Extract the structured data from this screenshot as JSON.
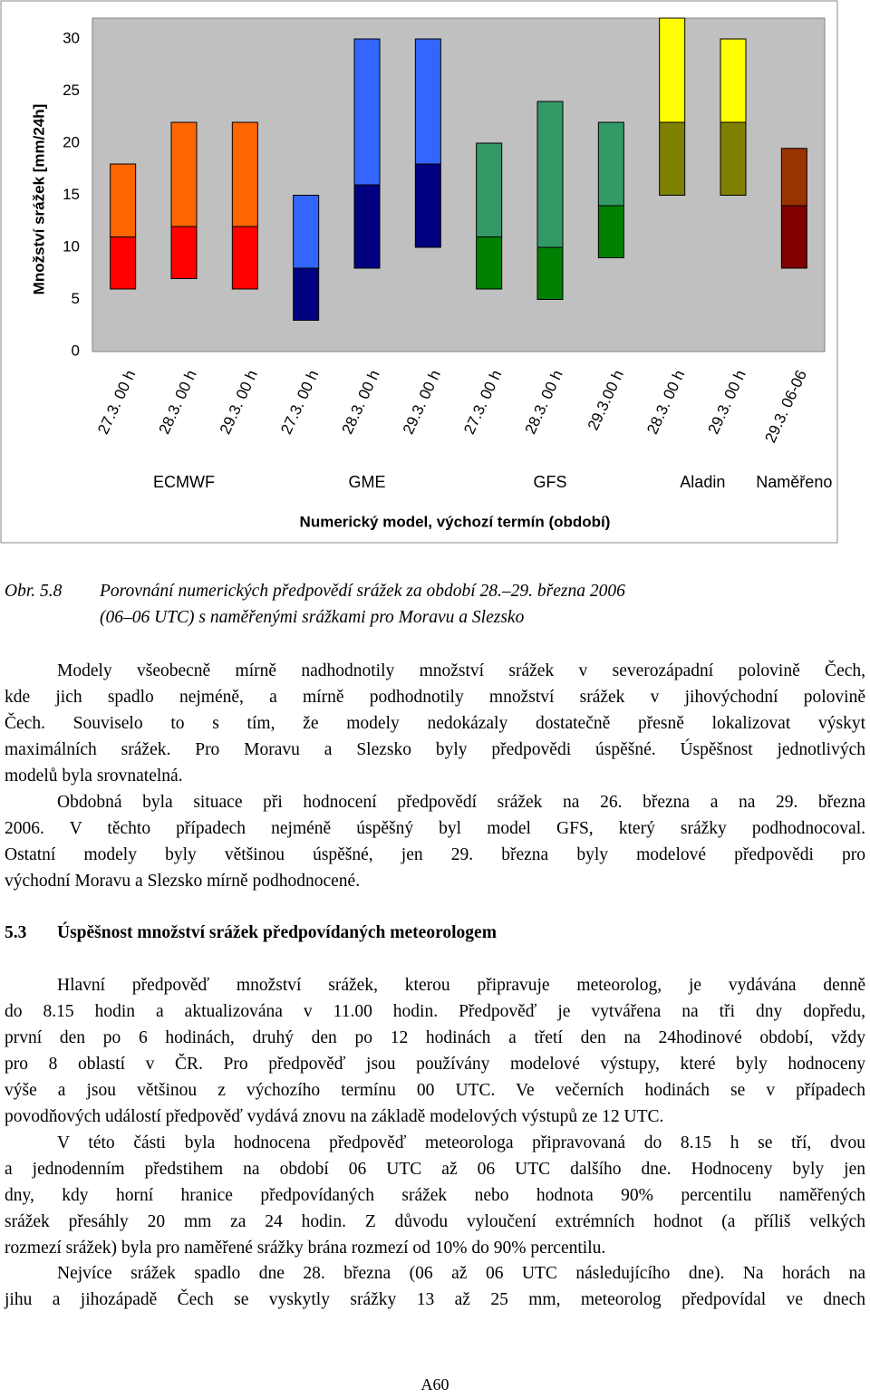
{
  "chart_data": {
    "type": "bar",
    "ylabel": "Množství srážek [mm/24h]",
    "xlabel": "Numerický model, výchozí termín (období)",
    "ylim": [
      0,
      32
    ],
    "yticks": [
      0,
      5,
      10,
      15,
      20,
      25,
      30
    ],
    "grid": false,
    "groups": [
      {
        "name": "ECMWF",
        "categories": [
          "27.3. 00 h",
          "28.3. 00 h",
          "29.3. 00 h"
        ],
        "low": [
          6,
          7,
          6
        ],
        "mid": [
          11,
          12,
          12
        ],
        "high": [
          18,
          22,
          22
        ],
        "colors": {
          "lower": "#ff0000",
          "upper": "#ff6600"
        }
      },
      {
        "name": "GME",
        "categories": [
          "27.3. 00 h",
          "28.3. 00 h",
          "29.3. 00 h"
        ],
        "low": [
          3,
          8,
          10
        ],
        "mid": [
          8,
          16,
          18
        ],
        "high": [
          15,
          30,
          30
        ],
        "colors": {
          "lower": "#000080",
          "upper": "#3366ff"
        }
      },
      {
        "name": "GFS",
        "categories": [
          "27.3. 00 h",
          "28.3. 00 h",
          "29.3.00 h"
        ],
        "low": [
          6,
          5,
          9
        ],
        "mid": [
          11,
          10,
          14
        ],
        "high": [
          20,
          24,
          22
        ],
        "colors": {
          "lower": "#008000",
          "upper": "#339966"
        }
      },
      {
        "name": "Aladin",
        "categories": [
          "28.3. 00 h",
          "29.3. 00 h"
        ],
        "low": [
          15,
          15
        ],
        "mid": [
          22,
          22
        ],
        "high": [
          32,
          30
        ],
        "colors": {
          "lower": "#808000",
          "upper": "#ffff00"
        }
      },
      {
        "name": "Naměřeno",
        "categories": [
          "29.3. 06-06"
        ],
        "low": [
          8
        ],
        "mid": [
          14
        ],
        "high": [
          19.5
        ],
        "colors": {
          "lower": "#800000",
          "upper": "#993300"
        }
      }
    ]
  },
  "caption": {
    "label": "Obr. 5.8",
    "lines": [
      "Porovnání numerických předpovědí srážek za období  28.–29. března 2006",
      "(06–06 UTC) s naměřenými srážkami pro Moravu a Slezsko"
    ]
  },
  "blocks": [
    {
      "lines": [
        "Modely všeobecně mírně nadhodnotily množství srážek v severozápadní polovině Čech,",
        "kde jich spadlo nejméně, a mírně podhodnotily množství srážek v jihovýchodní polovině",
        "Čech. Souviselo to s tím, že modely nedokázaly dostatečně přesně lokalizovat výskyt",
        "maximálních srážek. Pro Moravu a Slezsko byly předpovědi úspěšné. Úspěšnost jednotlivých",
        "modelů byla srovnatelná."
      ]
    },
    {
      "lines": [
        "Obdobná byla situace při hodnocení předpovědí srážek na 26. března a na 29. března",
        "2006. V těchto případech nejméně úspěšný byl model GFS, který srážky podhodnocoval.",
        "Ostatní modely byly většinou úspěšné, jen 29. března byly modelové předpovědi pro",
        "východní Moravu a Slezsko mírně podhodnocené."
      ]
    },
    {
      "lines": [
        "Hlavní předpověď množství srážek, kterou připravuje meteorolog, je vydávána denně",
        "do 8.15 hodin a aktualizována v 11.00 hodin. Předpověď je vytvářena na tři dny dopředu,",
        "první den po 6 hodinách, druhý den po 12 hodinách a třetí den na 24hodinové období, vždy",
        "pro 8 oblastí v ČR. Pro předpověď jsou používány modelové výstupy, které byly hodnoceny",
        "výše a jsou většinou z výchozího termínu 00 UTC. Ve večerních hodinách se v případech",
        "povodňových událostí předpověď vydává znovu na základě modelových výstupů ze 12 UTC."
      ]
    },
    {
      "lines": [
        "V této části byla hodnocena předpověď meteorologa připravovaná do 8.15 h se tří, dvou",
        "a jednodenním předstihem na období 06 UTC až 06 UTC dalšího dne. Hodnoceny byly jen",
        "dny, kdy horní hranice předpovídaných srážek nebo hodnota 90% percentilu naměřených",
        "srážek přesáhly 20 mm za 24 hodin. Z důvodu vyloučení extrémních hodnot (a příliš velkých",
        "rozmezí srážek) byla pro naměřené srážky brána rozmezí od 10% do 90% percentilu."
      ]
    },
    {
      "lines": [
        "Nejvíce srážek spadlo dne 28. března (06 až 06 UTC následujícího dne). Na horách na",
        "jihu a jihozápadě Čech se vyskytly srážky 13 až 25 mm, meteorolog předpovídal ve dnech"
      ]
    }
  ],
  "section": {
    "number": "5.3",
    "title": "Úspěšnost množství srážek předpovídaných meteorologem"
  },
  "footer": "A60"
}
